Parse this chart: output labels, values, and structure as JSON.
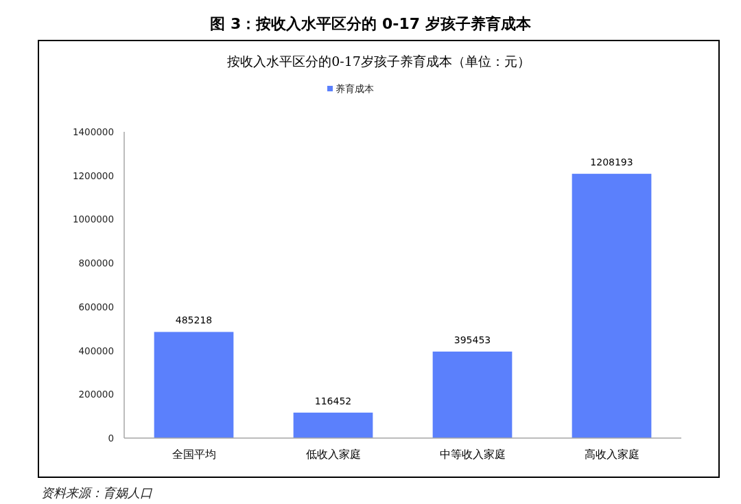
{
  "chart_data": {
    "type": "bar",
    "title": "图 3：按收入水平区分的 0-17 岁孩子养育成本",
    "subtitle": "按收入水平区分的0-17岁孩子养育成本（单位：元）",
    "categories": [
      "全国平均",
      "低收入家庭",
      "中等收入家庭",
      "高收入家庭"
    ],
    "series": [
      {
        "name": "养育成本",
        "color": "#5b80fc",
        "values": [
          485218,
          116452,
          395453,
          1208193
        ]
      }
    ],
    "ylim": [
      0,
      1400000
    ],
    "yticks": [
      0,
      200000,
      400000,
      600000,
      800000,
      1000000,
      1200000,
      1400000
    ],
    "data_labels": true,
    "legend": "top",
    "grid": false,
    "annotations": [
      "资料来源：育娲人口"
    ]
  }
}
